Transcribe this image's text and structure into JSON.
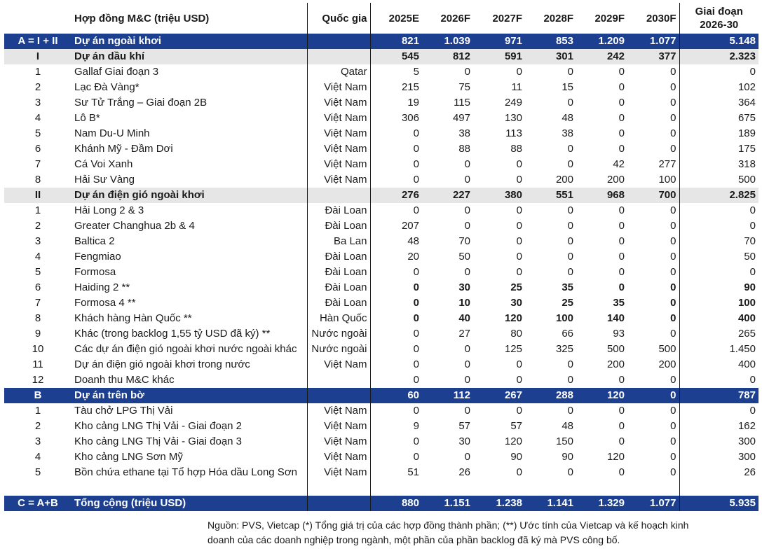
{
  "header": {
    "idx": "",
    "name": "Hợp đồng M&C (triệu USD)",
    "country": "Quốc gia",
    "years": [
      "2025E",
      "2026F",
      "2027F",
      "2028F",
      "2029F",
      "2030F"
    ],
    "total_line1": "Giai đoạn",
    "total_line2": "2026-30"
  },
  "rows": [
    {
      "style": "blue",
      "idx": "A = I + II",
      "name": "Dự án ngoài khơi",
      "country": "",
      "vals": [
        "821",
        "1.039",
        "971",
        "853",
        "1.209",
        "1.077"
      ],
      "total": "5.148"
    },
    {
      "style": "grey",
      "idx": "I",
      "name": "Dự án dầu khí",
      "country": "",
      "vals": [
        "545",
        "812",
        "591",
        "301",
        "242",
        "377"
      ],
      "total": "2.323"
    },
    {
      "style": "",
      "idx": "1",
      "name": "Gallaf Giai đoạn 3",
      "country": "Qatar",
      "vals": [
        "5",
        "0",
        "0",
        "0",
        "0",
        "0"
      ],
      "total": "0"
    },
    {
      "style": "",
      "idx": "2",
      "name": "Lạc Đà Vàng*",
      "country": "Việt Nam",
      "vals": [
        "215",
        "75",
        "11",
        "15",
        "0",
        "0"
      ],
      "total": "102"
    },
    {
      "style": "",
      "idx": "3",
      "name": "Sư Tử Trắng – Giai đoạn 2B",
      "country": "Việt Nam",
      "vals": [
        "19",
        "115",
        "249",
        "0",
        "0",
        "0"
      ],
      "total": "364"
    },
    {
      "style": "",
      "idx": "4",
      "name": "Lô B*",
      "country": "Việt Nam",
      "vals": [
        "306",
        "497",
        "130",
        "48",
        "0",
        "0"
      ],
      "total": "675"
    },
    {
      "style": "",
      "idx": "5",
      "name": "Nam Du-U Minh",
      "country": "Việt Nam",
      "vals": [
        "0",
        "38",
        "113",
        "38",
        "0",
        "0"
      ],
      "total": "189"
    },
    {
      "style": "",
      "idx": "6",
      "name": "Khánh Mỹ - Đầm Dơi",
      "country": "Việt Nam",
      "vals": [
        "0",
        "88",
        "88",
        "0",
        "0",
        "0"
      ],
      "total": "175"
    },
    {
      "style": "",
      "idx": "7",
      "name": "Cá Voi Xanh",
      "country": "Việt Nam",
      "vals": [
        "0",
        "0",
        "0",
        "0",
        "42",
        "277"
      ],
      "total": "318"
    },
    {
      "style": "",
      "idx": "8",
      "name": "Hải Sư Vàng",
      "country": "Việt Nam",
      "vals": [
        "0",
        "0",
        "0",
        "200",
        "200",
        "100"
      ],
      "total": "500"
    },
    {
      "style": "grey",
      "idx": "II",
      "name": "Dự án điện gió ngoài khơi",
      "country": "",
      "vals": [
        "276",
        "227",
        "380",
        "551",
        "968",
        "700"
      ],
      "total": "2.825"
    },
    {
      "style": "",
      "idx": "1",
      "name": "Hải Long 2 & 3",
      "country": "Đài Loan",
      "vals": [
        "0",
        "0",
        "0",
        "0",
        "0",
        "0"
      ],
      "total": "0"
    },
    {
      "style": "",
      "idx": "2",
      "name": "Greater Changhua 2b & 4",
      "country": "Đài Loan",
      "vals": [
        "207",
        "0",
        "0",
        "0",
        "0",
        "0"
      ],
      "total": "0"
    },
    {
      "style": "",
      "idx": "3",
      "name": "Baltica 2",
      "country": "Ba Lan",
      "vals": [
        "48",
        "70",
        "0",
        "0",
        "0",
        "0"
      ],
      "total": "70"
    },
    {
      "style": "",
      "idx": "4",
      "name": "Fengmiao",
      "country": "Đài Loan",
      "vals": [
        "20",
        "50",
        "0",
        "0",
        "0",
        "0"
      ],
      "total": "50"
    },
    {
      "style": "",
      "idx": "5",
      "name": "Formosa",
      "country": "Đài Loan",
      "vals": [
        "0",
        "0",
        "0",
        "0",
        "0",
        "0"
      ],
      "total": "0"
    },
    {
      "style": "bold",
      "idx": "6",
      "name": "Haiding 2 **",
      "country": "Đài Loan",
      "vals": [
        "0",
        "30",
        "25",
        "35",
        "0",
        "0"
      ],
      "total": "90"
    },
    {
      "style": "bold",
      "idx": "7",
      "name": "Formosa 4 **",
      "country": "Đài Loan",
      "vals": [
        "0",
        "10",
        "30",
        "25",
        "35",
        "0"
      ],
      "total": "100"
    },
    {
      "style": "bold",
      "idx": "8",
      "name": "Khách hàng Hàn Quốc **",
      "country": "Hàn Quốc",
      "vals": [
        "0",
        "40",
        "120",
        "100",
        "140",
        "0"
      ],
      "total": "400"
    },
    {
      "style": "",
      "idx": "9",
      "name": "Khác (trong backlog 1,55 tỷ USD đã ký) **",
      "country": "Nước ngoài",
      "vals": [
        "0",
        "27",
        "80",
        "66",
        "93",
        "0"
      ],
      "total": "265"
    },
    {
      "style": "",
      "idx": "10",
      "name": "Các dự án điện gió ngoài khơi nước ngoài khác",
      "country": "Nước ngoài",
      "vals": [
        "0",
        "0",
        "125",
        "325",
        "500",
        "500"
      ],
      "total": "1.450"
    },
    {
      "style": "",
      "idx": "11",
      "name": "Dự án điện gió ngoài khơi trong nước",
      "country": "Việt Nam",
      "vals": [
        "0",
        "0",
        "0",
        "0",
        "200",
        "200"
      ],
      "total": "400"
    },
    {
      "style": "",
      "idx": "12",
      "name": "Doanh thu M&C khác",
      "country": "",
      "vals": [
        "0",
        "0",
        "0",
        "0",
        "0",
        "0"
      ],
      "total": "0"
    },
    {
      "style": "blue",
      "idx": "B",
      "name": "Dự án trên bờ",
      "country": "",
      "vals": [
        "60",
        "112",
        "267",
        "288",
        "120",
        "0"
      ],
      "total": "787"
    },
    {
      "style": "",
      "idx": "1",
      "name": "Tàu chở LPG Thị Vải",
      "country": "Việt Nam",
      "vals": [
        "0",
        "0",
        "0",
        "0",
        "0",
        "0"
      ],
      "total": "0"
    },
    {
      "style": "",
      "idx": "2",
      "name": "Kho cảng LNG Thị Vải - Giai đoạn 2",
      "country": "Việt Nam",
      "vals": [
        "9",
        "57",
        "57",
        "48",
        "0",
        "0"
      ],
      "total": "162"
    },
    {
      "style": "",
      "idx": "3",
      "name": "Kho cảng LNG Thị Vải - Giai đoạn 3",
      "country": "Việt Nam",
      "vals": [
        "0",
        "30",
        "120",
        "150",
        "0",
        "0"
      ],
      "total": "300"
    },
    {
      "style": "",
      "idx": "4",
      "name": "Kho cảng LNG Sơn Mỹ",
      "country": "Việt Nam",
      "vals": [
        "0",
        "0",
        "90",
        "90",
        "120",
        "0"
      ],
      "total": "300"
    },
    {
      "style": "tall",
      "idx": "5",
      "name": "Bồn chứa ethane tại Tổ hợp Hóa dầu Long Sơn",
      "country": "Việt Nam",
      "vals": [
        "51",
        "26",
        "0",
        "0",
        "0",
        "0"
      ],
      "total": "26"
    },
    {
      "style": "blue",
      "idx": "C = A+B",
      "name": "Tổng cộng (triệu USD)",
      "country": "",
      "vals": [
        "880",
        "1.151",
        "1.238",
        "1.141",
        "1.329",
        "1.077"
      ],
      "total": "5.935"
    }
  ],
  "footnote": {
    "line1": "Nguồn: PVS, Vietcap (*) Tổng giá trị của các hợp đồng thành phần; (**) Ước tính của Vietcap và kế hoạch kinh",
    "line2": "doanh của các doanh nghiệp trong ngành, một phần của phần backlog đã ký mà PVS công bố."
  }
}
